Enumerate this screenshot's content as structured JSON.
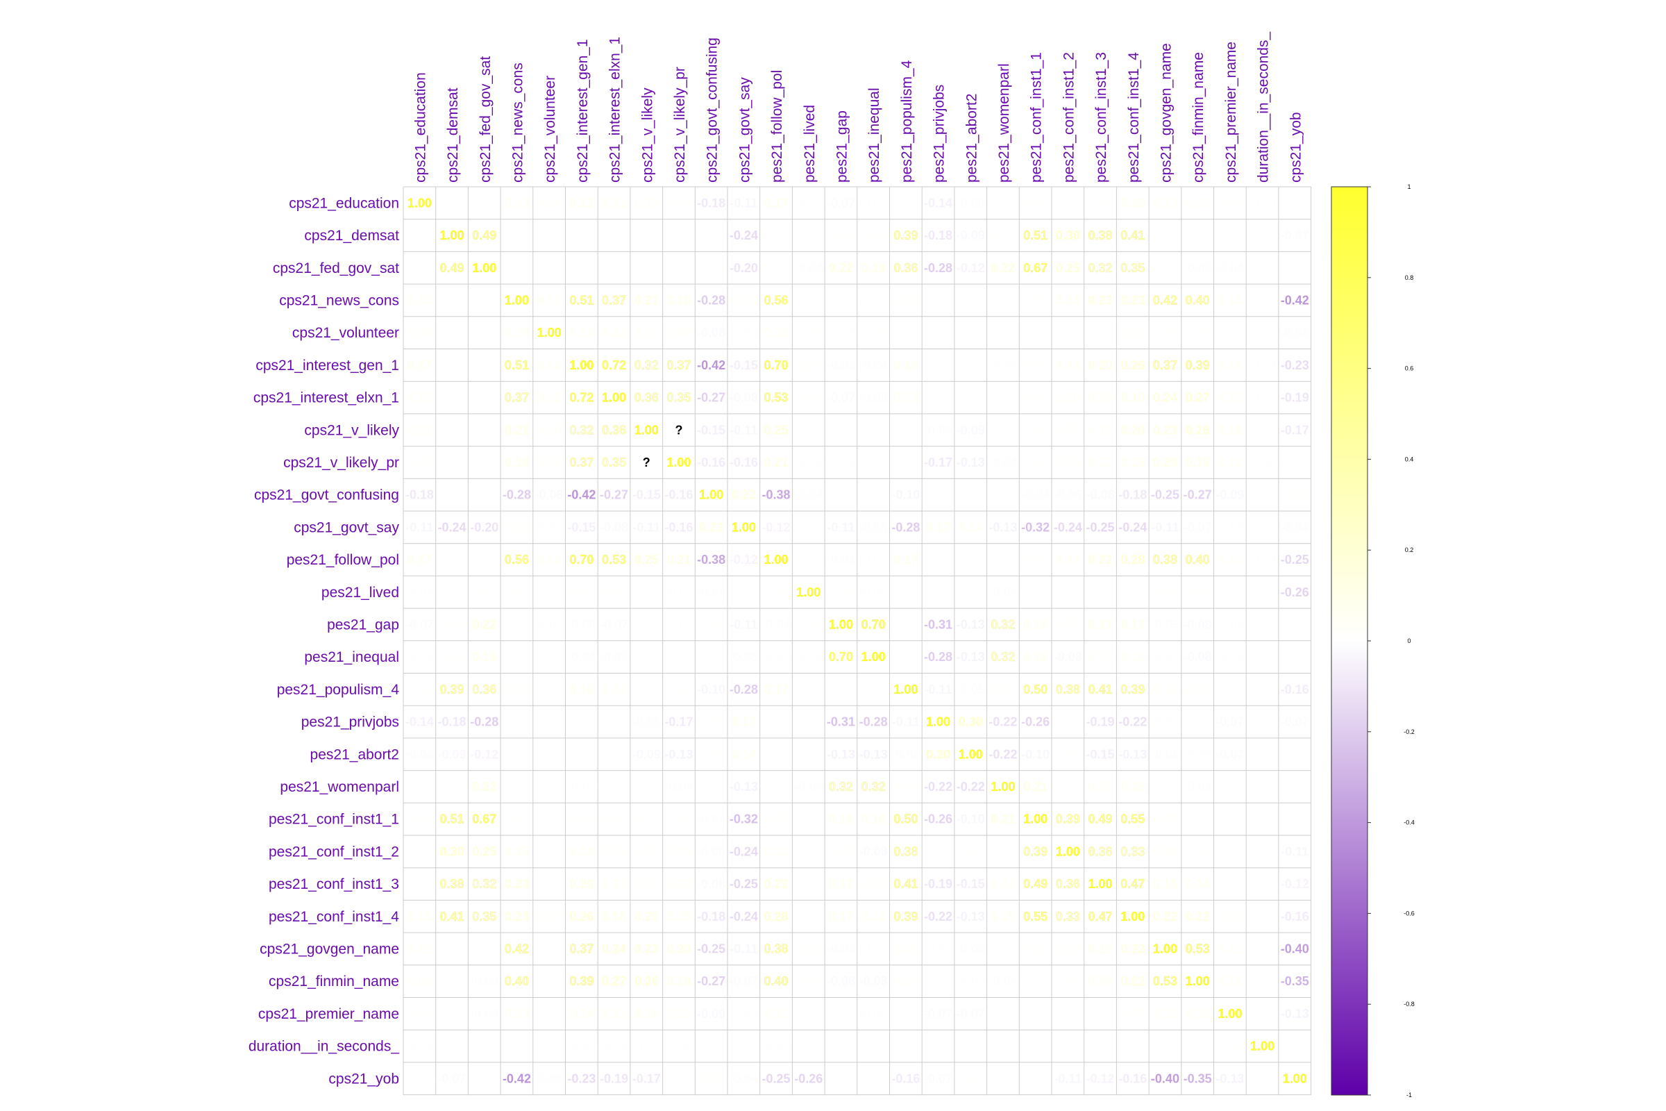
{
  "chart_data": {
    "type": "heatmap",
    "variables": [
      "cps21_education",
      "cps21_demsat",
      "cps21_fed_gov_sat",
      "cps21_news_cons",
      "cps21_volunteer",
      "cps21_interest_gen_1",
      "cps21_interest_elxn_1",
      "cps21_v_likely",
      "cps21_v_likely_pr",
      "cps21_govt_confusing",
      "cps21_govt_say",
      "pes21_follow_pol",
      "pes21_lived",
      "pes21_gap",
      "pes21_inequal",
      "pes21_populism_4",
      "pes21_privjobs",
      "pes21_abort2",
      "pes21_womenparl",
      "pes21_conf_inst1_1",
      "pes21_conf_inst1_2",
      "pes21_conf_inst1_3",
      "pes21_conf_inst1_4",
      "cps21_govgen_name",
      "cps21_finmin_name",
      "cps21_premier_name",
      "duration__in_seconds_",
      "cps21_yob"
    ],
    "matrix": [
      [
        1.0,
        0.02,
        0.01,
        0.13,
        0.09,
        0.17,
        0.12,
        0.11,
        0.08,
        -0.18,
        -0.11,
        0.17,
        -0.03,
        -0.07,
        -0.02,
        0.05,
        -0.14,
        -0.06,
        0.02,
        0.06,
        0.0,
        0.04,
        0.15,
        0.12,
        0.09,
        0.06,
        -0.03,
        0.04
      ],
      [
        0.02,
        1.0,
        0.49,
        0.0,
        0.0,
        0.0,
        0.0,
        0.0,
        0.0,
        0.0,
        -0.24,
        0.0,
        0.0,
        0.06,
        0.06,
        0.39,
        -0.18,
        -0.09,
        0.05,
        0.51,
        0.3,
        0.38,
        0.41,
        0.0,
        0.0,
        0.0,
        0.0,
        -0.07
      ],
      [
        0.01,
        0.49,
        1.0,
        0.0,
        0.0,
        0.02,
        0.0,
        0.0,
        0.0,
        0.0,
        -0.2,
        0.0,
        -0.04,
        0.22,
        0.19,
        0.36,
        -0.28,
        -0.12,
        0.22,
        0.67,
        0.25,
        0.32,
        0.35,
        0.0,
        -0.05,
        -0.04,
        0.0,
        0.03
      ],
      [
        0.13,
        0.0,
        0.0,
        1.0,
        0.13,
        0.51,
        0.37,
        0.21,
        0.18,
        -0.28,
        0.08,
        0.56,
        0.05,
        0.04,
        -0.03,
        0.06,
        0.02,
        0.03,
        0.03,
        0.05,
        0.15,
        0.23,
        0.23,
        0.42,
        0.4,
        0.13,
        0.04,
        -0.42
      ],
      [
        0.09,
        0.0,
        0.0,
        0.13,
        1.0,
        0.13,
        0.12,
        0.1,
        0.09,
        -0.08,
        -0.03,
        0.13,
        0.05,
        -0.03,
        0.05,
        0.05,
        0.04,
        0.04,
        0.0,
        0.0,
        0.0,
        0.0,
        0.06,
        0.05,
        0.05,
        0.0,
        0.04,
        -0.05
      ],
      [
        0.17,
        0.0,
        0.02,
        0.51,
        0.13,
        1.0,
        0.72,
        0.32,
        0.37,
        -0.42,
        -0.15,
        0.7,
        0.07,
        -0.06,
        -0.04,
        0.16,
        0.0,
        0.0,
        -0.03,
        0.06,
        0.14,
        0.2,
        0.26,
        0.37,
        0.39,
        0.14,
        -0.03,
        -0.23
      ],
      [
        0.12,
        0.0,
        0.0,
        0.37,
        0.12,
        0.72,
        1.0,
        0.36,
        0.35,
        -0.27,
        -0.08,
        0.53,
        0.06,
        -0.07,
        -0.05,
        0.12,
        0.0,
        0.02,
        0.0,
        0.06,
        0.1,
        0.13,
        0.18,
        0.24,
        0.27,
        0.12,
        -0.02,
        -0.19
      ],
      [
        0.11,
        0.0,
        0.0,
        0.21,
        0.1,
        0.32,
        0.36,
        1.0,
        null,
        -0.15,
        -0.11,
        0.25,
        0.03,
        0.03,
        0.02,
        0.03,
        -0.05,
        -0.09,
        0.0,
        0.05,
        0.08,
        0.1,
        0.2,
        0.23,
        0.26,
        0.15,
        -0.02,
        -0.17
      ],
      [
        0.08,
        0.0,
        0.0,
        0.18,
        0.09,
        0.37,
        0.35,
        null,
        1.0,
        -0.16,
        -0.16,
        0.21,
        -0.02,
        -0.02,
        0.01,
        0.03,
        -0.17,
        -0.13,
        -0.04,
        0.05,
        0.1,
        0.12,
        0.15,
        0.2,
        0.18,
        0.12,
        -0.02,
        -0.03
      ],
      [
        -0.18,
        0.0,
        0.0,
        -0.28,
        -0.08,
        -0.42,
        -0.27,
        -0.15,
        -0.16,
        1.0,
        0.22,
        -0.38,
        -0.04,
        0.03,
        0.02,
        -0.1,
        0.03,
        0.03,
        0.02,
        -0.04,
        -0.06,
        -0.08,
        -0.18,
        -0.25,
        -0.27,
        -0.09,
        0.0,
        0.08
      ],
      [
        -0.11,
        -0.24,
        -0.2,
        0.08,
        -0.03,
        -0.15,
        -0.08,
        -0.11,
        -0.16,
        0.22,
        1.0,
        -0.12,
        0.0,
        -0.11,
        -0.05,
        -0.28,
        0.17,
        0.14,
        -0.13,
        -0.32,
        -0.24,
        -0.25,
        -0.24,
        -0.11,
        -0.07,
        -0.03,
        0.0,
        -0.04
      ],
      [
        0.17,
        0.0,
        0.0,
        0.56,
        0.13,
        0.7,
        0.53,
        0.25,
        0.21,
        -0.38,
        -0.12,
        1.0,
        0.05,
        -0.04,
        -0.03,
        0.17,
        0.04,
        0.0,
        0.0,
        0.07,
        0.12,
        0.22,
        0.28,
        0.38,
        0.4,
        0.11,
        -0.03,
        -0.25
      ],
      [
        -0.03,
        0.0,
        0.04,
        0.05,
        0.05,
        0.07,
        0.06,
        0.03,
        -0.02,
        -0.04,
        0.0,
        0.05,
        1.0,
        0.04,
        -0.03,
        0.0,
        0.02,
        0.0,
        -0.04,
        0.0,
        0.0,
        0.0,
        0.0,
        0.06,
        0.06,
        0.0,
        0.0,
        -0.26
      ],
      [
        -0.07,
        0.06,
        0.22,
        0.04,
        -0.03,
        -0.06,
        -0.07,
        0.03,
        -0.02,
        0.03,
        -0.11,
        -0.04,
        0.04,
        1.0,
        0.7,
        0.04,
        -0.31,
        -0.13,
        0.32,
        0.16,
        0.08,
        0.17,
        0.17,
        -0.05,
        -0.08,
        -0.02,
        0.0,
        0.02
      ],
      [
        -0.02,
        0.06,
        0.19,
        -0.03,
        0.05,
        -0.04,
        -0.05,
        0.02,
        0.01,
        0.02,
        -0.05,
        -0.03,
        -0.03,
        0.7,
        1.0,
        0.04,
        -0.28,
        -0.13,
        0.32,
        0.16,
        -0.08,
        0.1,
        0.12,
        -0.03,
        -0.08,
        -0.03,
        0.0,
        0.03
      ],
      [
        0.05,
        0.39,
        0.36,
        0.06,
        0.05,
        0.16,
        0.12,
        0.03,
        0.03,
        -0.1,
        -0.28,
        0.17,
        0.0,
        0.04,
        0.04,
        1.0,
        -0.11,
        -0.05,
        0.08,
        0.5,
        0.38,
        0.41,
        0.39,
        0.11,
        0.1,
        0.0,
        0.0,
        -0.16
      ],
      [
        -0.14,
        -0.18,
        -0.28,
        0.02,
        0.04,
        0.0,
        0.0,
        -0.05,
        -0.17,
        0.03,
        0.17,
        0.04,
        0.02,
        -0.31,
        -0.28,
        -0.11,
        1.0,
        0.3,
        -0.22,
        -0.26,
        0.0,
        -0.19,
        -0.22,
        -0.03,
        0.0,
        -0.07,
        0.02,
        -0.07
      ],
      [
        -0.06,
        -0.09,
        -0.12,
        0.03,
        0.04,
        0.0,
        0.02,
        -0.09,
        -0.13,
        0.03,
        0.14,
        0.0,
        0.0,
        -0.13,
        -0.13,
        -0.05,
        0.3,
        1.0,
        -0.22,
        -0.1,
        0.03,
        -0.15,
        -0.13,
        -0.06,
        -0.03,
        -0.07,
        0.02,
        0.03
      ],
      [
        0.02,
        0.05,
        0.22,
        0.03,
        0.0,
        -0.03,
        0.0,
        0.0,
        -0.04,
        0.02,
        -0.13,
        0.0,
        -0.04,
        0.32,
        0.32,
        0.08,
        -0.22,
        -0.22,
        1.0,
        0.21,
        0.0,
        0.12,
        0.15,
        0.0,
        -0.04,
        0.0,
        0.0,
        0.02
      ],
      [
        0.06,
        0.51,
        0.67,
        0.05,
        0.0,
        0.06,
        0.06,
        0.05,
        0.05,
        -0.04,
        -0.32,
        0.07,
        0.0,
        0.16,
        0.16,
        0.5,
        -0.26,
        -0.1,
        0.21,
        1.0,
        0.39,
        0.49,
        0.55,
        0.08,
        0.0,
        0.0,
        0.0,
        0.0
      ],
      [
        0.0,
        0.3,
        0.25,
        0.15,
        0.0,
        0.14,
        0.1,
        0.08,
        0.1,
        -0.06,
        -0.24,
        0.12,
        0.0,
        0.08,
        -0.08,
        0.38,
        0.0,
        0.03,
        0.0,
        0.39,
        1.0,
        0.36,
        0.33,
        0.1,
        0.05,
        0.0,
        0.0,
        -0.11
      ],
      [
        0.04,
        0.38,
        0.32,
        0.23,
        0.0,
        0.2,
        0.13,
        0.1,
        0.12,
        -0.08,
        -0.25,
        0.22,
        0.0,
        0.17,
        0.1,
        0.41,
        -0.19,
        -0.15,
        0.12,
        0.49,
        0.36,
        1.0,
        0.47,
        0.16,
        0.14,
        0.0,
        0.0,
        -0.12
      ],
      [
        0.15,
        0.41,
        0.35,
        0.23,
        0.06,
        0.26,
        0.18,
        0.2,
        0.15,
        -0.18,
        -0.24,
        0.28,
        0.0,
        0.17,
        0.12,
        0.39,
        -0.22,
        -0.13,
        0.15,
        0.55,
        0.33,
        0.47,
        1.0,
        0.22,
        0.22,
        0.08,
        0.0,
        -0.16
      ],
      [
        0.12,
        0.0,
        0.0,
        0.42,
        0.05,
        0.37,
        0.24,
        0.23,
        0.2,
        -0.25,
        -0.11,
        0.38,
        0.06,
        -0.05,
        -0.03,
        0.11,
        -0.03,
        -0.06,
        0.0,
        0.08,
        0.1,
        0.16,
        0.22,
        1.0,
        0.53,
        0.11,
        0.02,
        -0.4
      ],
      [
        0.09,
        0.0,
        -0.05,
        0.4,
        0.05,
        0.39,
        0.27,
        0.26,
        0.18,
        -0.27,
        -0.07,
        0.4,
        0.06,
        -0.08,
        -0.08,
        0.1,
        0.0,
        -0.03,
        -0.04,
        0.0,
        0.05,
        0.14,
        0.22,
        0.53,
        1.0,
        0.12,
        0.02,
        -0.35
      ],
      [
        0.06,
        0.0,
        -0.04,
        0.13,
        0.0,
        0.14,
        0.12,
        0.15,
        0.12,
        -0.09,
        -0.03,
        0.11,
        0.0,
        -0.02,
        -0.03,
        0.0,
        -0.07,
        -0.07,
        0.0,
        0.0,
        0.0,
        0.0,
        0.08,
        0.11,
        0.12,
        1.0,
        0.03,
        -0.13
      ],
      [
        -0.03,
        0.0,
        0.0,
        0.04,
        0.04,
        -0.03,
        -0.02,
        -0.02,
        -0.02,
        0.0,
        0.0,
        -0.03,
        0.0,
        0.0,
        0.0,
        0.0,
        0.02,
        0.02,
        0.0,
        0.0,
        0.0,
        0.0,
        0.0,
        0.02,
        0.02,
        0.03,
        1.0,
        0.02
      ],
      [
        0.04,
        -0.07,
        0.03,
        -0.42,
        -0.05,
        -0.23,
        -0.19,
        -0.17,
        -0.03,
        0.08,
        -0.04,
        -0.25,
        -0.26,
        0.02,
        0.03,
        -0.16,
        -0.07,
        0.03,
        0.02,
        0.0,
        -0.11,
        -0.12,
        -0.16,
        -0.4,
        -0.35,
        -0.13,
        0.02,
        1.0
      ]
    ],
    "missing_symbol": "?",
    "colorbar": {
      "ticks": [
        "1",
        "0.8",
        "0.6",
        "0.4",
        "0.2",
        "0",
        "-0.2",
        "-0.4",
        "-0.6",
        "-0.8",
        "-1"
      ],
      "range": [
        -1,
        1
      ],
      "colors": {
        "low": "#5e00a8",
        "mid": "#ffffff",
        "high": "#ffff2e"
      }
    },
    "label_color": "#6a0dad",
    "grid_color": "#cccccc"
  }
}
